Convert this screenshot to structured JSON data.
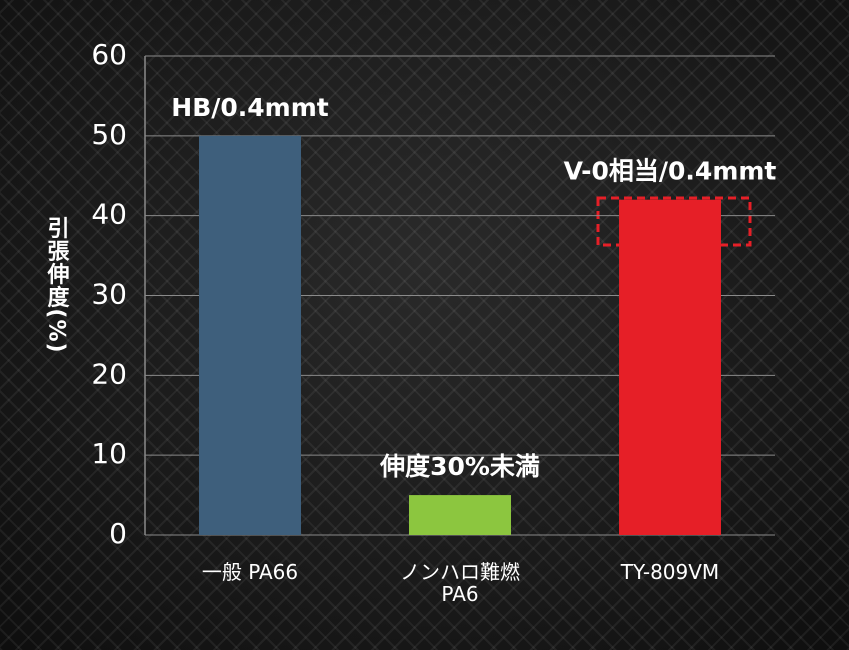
{
  "chart_data": {
    "type": "bar",
    "y_label": "引張伸度(%)",
    "categories": [
      "一般 PA66",
      "ノンハロ難燃\nPA6",
      "TY-809VM"
    ],
    "values": [
      50,
      5,
      42
    ],
    "colors": [
      "#3e5f7c",
      "#8cc63f",
      "#e61f27"
    ],
    "annotations": [
      "HB/0.4mmt",
      "伸度30%未満",
      "V-0相当/0.4mmt"
    ],
    "ylim": [
      0,
      60
    ],
    "yticks": [
      0,
      10,
      20,
      30,
      40,
      50,
      60
    ],
    "grid": true
  }
}
